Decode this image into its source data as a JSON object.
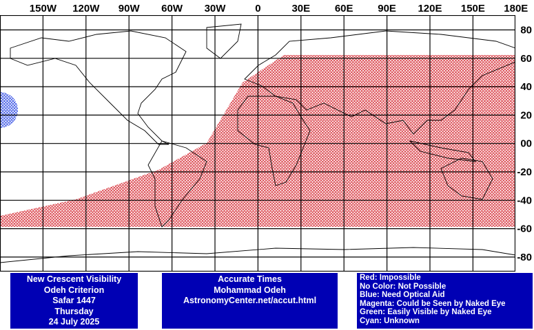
{
  "map": {
    "lon_labels": [
      "150W",
      "120W",
      "90W",
      "60W",
      "30W",
      "0",
      "30E",
      "60E",
      "90E",
      "120E",
      "150E",
      "180E"
    ],
    "lat_labels": [
      "80",
      "60",
      "40",
      "20",
      "00",
      "-20",
      "-40",
      "-60",
      "-80"
    ]
  },
  "info_left": [
    "New Crescent Visibility",
    "Odeh Criterion",
    "Safar 1447",
    "Thursday",
    "24 July 2025"
  ],
  "info_center": [
    "Accurate Times",
    "Mohammad Odeh",
    "AstronomyCenter.net/accut.html"
  ],
  "legend": [
    "Red: Impossible",
    "No Color: Not Possible",
    "Blue: Need Optical Aid",
    "Magenta: Could be Seen by Naked Eye",
    "Green: Easily Visible by Naked Eye",
    "Cyan: Unknown"
  ]
}
